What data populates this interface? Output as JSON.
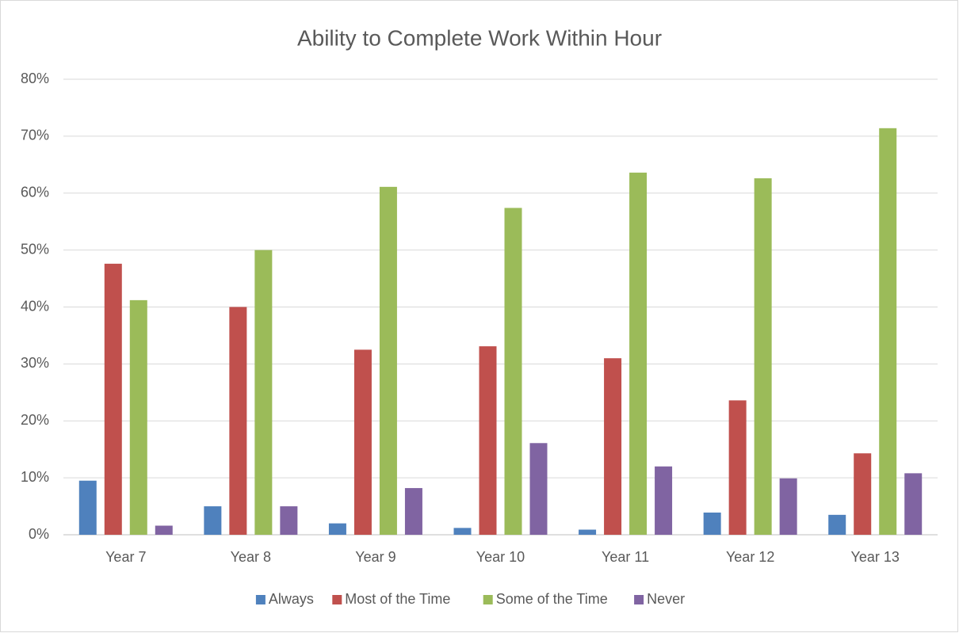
{
  "chart_data": {
    "type": "bar",
    "title": "Ability to Complete Work Within Hour",
    "categories": [
      "Year 7",
      "Year 8",
      "Year 9",
      "Year 10",
      "Year 11",
      "Year 12",
      "Year 13"
    ],
    "series": [
      {
        "name": "Always",
        "color": "#4f81bd",
        "values": [
          9.5,
          5.0,
          2.0,
          1.2,
          0.9,
          3.9,
          3.5
        ]
      },
      {
        "name": "Most of the Time",
        "color": "#c0504d",
        "values": [
          47.6,
          40.0,
          32.5,
          33.1,
          31.0,
          23.6,
          14.3
        ]
      },
      {
        "name": "Some of the Time",
        "color": "#9bbb59",
        "values": [
          41.2,
          50.0,
          61.1,
          57.4,
          63.6,
          62.6,
          71.4
        ]
      },
      {
        "name": "Never",
        "color": "#8064a2",
        "values": [
          1.6,
          5.0,
          8.2,
          16.1,
          12.0,
          9.9,
          10.8
        ]
      }
    ],
    "ylim": [
      0,
      80
    ],
    "yticks": [
      {
        "value": 0,
        "label": "0%"
      },
      {
        "value": 10,
        "label": "10%"
      },
      {
        "value": 20,
        "label": "20%"
      },
      {
        "value": 30,
        "label": "30%"
      },
      {
        "value": 40,
        "label": "40%"
      },
      {
        "value": 50,
        "label": "50%"
      },
      {
        "value": 60,
        "label": "60%"
      },
      {
        "value": 70,
        "label": "70%"
      },
      {
        "value": 80,
        "label": "80%"
      }
    ],
    "grid": true,
    "legend": "bottom"
  }
}
